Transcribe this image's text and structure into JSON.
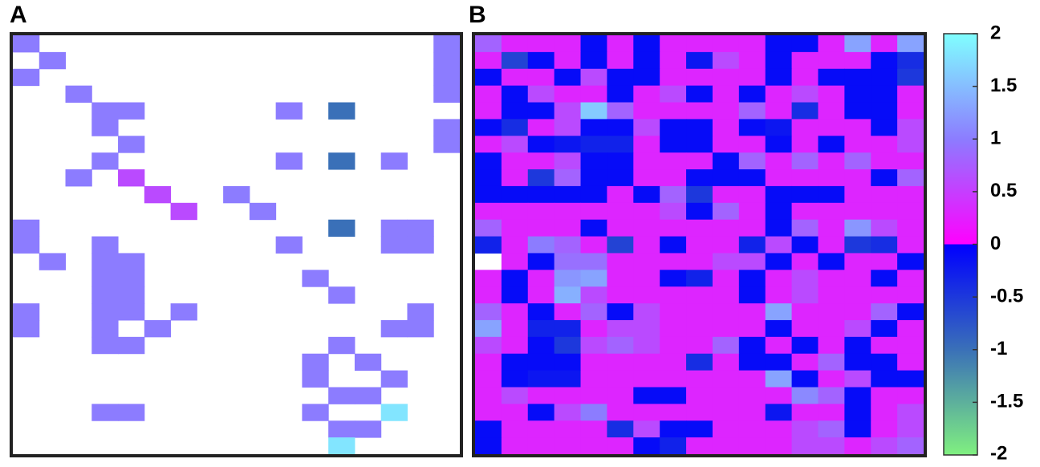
{
  "chart_data": {
    "type": "heatmap",
    "zlim": [
      -2,
      2
    ],
    "zticks": [
      2,
      1.5,
      1,
      0.5,
      0,
      -0.5,
      -1,
      -1.5,
      -2
    ],
    "colormap": {
      "negative": [
        "#80f080",
        "#3a70b8",
        "#0000ff"
      ],
      "positive": [
        "#ff00ff",
        "#8c7cff",
        "#80ffff"
      ]
    },
    "panels": [
      {
        "label": "A",
        "values": [
          [
            1,
            null,
            null,
            null,
            null,
            null,
            null,
            null,
            null,
            null,
            null,
            null,
            null,
            null,
            null,
            null,
            1
          ],
          [
            null,
            1,
            null,
            null,
            null,
            null,
            null,
            null,
            null,
            null,
            null,
            null,
            null,
            null,
            null,
            null,
            1
          ],
          [
            1,
            null,
            null,
            null,
            null,
            null,
            null,
            null,
            null,
            null,
            null,
            null,
            null,
            null,
            null,
            null,
            1
          ],
          [
            null,
            null,
            1,
            null,
            null,
            null,
            null,
            null,
            null,
            null,
            null,
            null,
            null,
            null,
            null,
            null,
            1
          ],
          [
            null,
            null,
            null,
            1,
            1,
            null,
            null,
            null,
            null,
            null,
            1,
            null,
            -1,
            null,
            null,
            null,
            null
          ],
          [
            null,
            null,
            null,
            1,
            null,
            null,
            null,
            null,
            null,
            null,
            null,
            null,
            null,
            null,
            null,
            null,
            1
          ],
          [
            null,
            null,
            null,
            null,
            1,
            null,
            null,
            null,
            null,
            null,
            null,
            null,
            null,
            null,
            null,
            null,
            1
          ],
          [
            null,
            null,
            null,
            1,
            null,
            null,
            null,
            null,
            null,
            null,
            1,
            null,
            -1,
            null,
            1,
            null,
            null
          ],
          [
            null,
            null,
            1,
            null,
            0.6,
            null,
            null,
            null,
            null,
            null,
            null,
            null,
            null,
            null,
            null,
            null,
            null
          ],
          [
            null,
            null,
            null,
            null,
            null,
            0.6,
            null,
            null,
            1,
            null,
            null,
            null,
            null,
            null,
            null,
            null,
            null
          ],
          [
            null,
            null,
            null,
            null,
            null,
            null,
            0.6,
            null,
            null,
            1,
            null,
            null,
            null,
            null,
            null,
            null,
            null
          ],
          [
            1,
            null,
            null,
            null,
            null,
            null,
            null,
            null,
            null,
            null,
            null,
            null,
            -1,
            null,
            1,
            1,
            null
          ],
          [
            1,
            null,
            null,
            1,
            null,
            null,
            null,
            null,
            null,
            null,
            1,
            null,
            null,
            null,
            1,
            1,
            null
          ],
          [
            null,
            1,
            null,
            1,
            1,
            null,
            null,
            null,
            null,
            null,
            null,
            null,
            null,
            null,
            null,
            null,
            null
          ],
          [
            null,
            null,
            null,
            1,
            1,
            null,
            null,
            null,
            null,
            null,
            null,
            1,
            null,
            null,
            null,
            null,
            null
          ],
          [
            null,
            null,
            null,
            1,
            1,
            null,
            null,
            null,
            null,
            null,
            null,
            null,
            1,
            null,
            null,
            null,
            null
          ],
          [
            1,
            null,
            null,
            1,
            1,
            null,
            1,
            null,
            null,
            null,
            null,
            null,
            null,
            null,
            null,
            1,
            null
          ],
          [
            1,
            null,
            null,
            1,
            null,
            1,
            null,
            null,
            null,
            null,
            null,
            null,
            null,
            null,
            1,
            1,
            null
          ],
          [
            null,
            null,
            null,
            1,
            1,
            null,
            null,
            null,
            null,
            null,
            null,
            null,
            1,
            null,
            null,
            null,
            null
          ],
          [
            null,
            null,
            null,
            null,
            null,
            null,
            null,
            null,
            null,
            null,
            null,
            1,
            null,
            1,
            null,
            null,
            null
          ],
          [
            null,
            null,
            null,
            null,
            null,
            null,
            null,
            null,
            null,
            null,
            null,
            1,
            null,
            null,
            1,
            null,
            null
          ],
          [
            null,
            null,
            null,
            null,
            null,
            null,
            null,
            null,
            null,
            null,
            null,
            null,
            1,
            1,
            null,
            null,
            null
          ],
          [
            null,
            null,
            null,
            1,
            1,
            null,
            null,
            null,
            null,
            null,
            null,
            1,
            null,
            null,
            1.8,
            null,
            null
          ],
          [
            null,
            null,
            null,
            null,
            null,
            null,
            null,
            null,
            null,
            null,
            null,
            null,
            1,
            1,
            null,
            null,
            null
          ],
          [
            null,
            null,
            null,
            null,
            null,
            null,
            null,
            null,
            null,
            null,
            null,
            null,
            1.8,
            null,
            null,
            null,
            null
          ]
        ]
      },
      {
        "label": "B",
        "values": [
          [
            0.8,
            0.3,
            0.3,
            0.3,
            -0.1,
            0.3,
            -0.1,
            0.3,
            0.3,
            0.3,
            0.3,
            -0.1,
            -0.1,
            0.3,
            1.3,
            0.3,
            1.3
          ],
          [
            0.3,
            -0.6,
            -0.1,
            0.3,
            -0.1,
            0.3,
            -0.1,
            0.3,
            -0.2,
            0.6,
            0.3,
            -0.1,
            0.3,
            0.3,
            0.3,
            -0.1,
            -0.4
          ],
          [
            -0.1,
            0.3,
            0.3,
            -0.1,
            0.6,
            -0.1,
            -0.1,
            0.3,
            0.3,
            0.3,
            0.3,
            -0.1,
            0.3,
            -0.1,
            -0.1,
            -0.1,
            -0.5
          ],
          [
            0.3,
            -0.1,
            0.6,
            0.3,
            0.3,
            -0.1,
            0.3,
            0.6,
            -0.1,
            0.3,
            -0.1,
            0.3,
            0.6,
            0.3,
            -0.1,
            -0.1,
            0.3
          ],
          [
            0.3,
            -0.1,
            -0.1,
            0.6,
            1.6,
            0.8,
            0.3,
            0.3,
            0.3,
            0.3,
            0.8,
            0.3,
            -0.4,
            0.3,
            -0.1,
            -0.1,
            0.3
          ],
          [
            -0.1,
            -0.4,
            0.3,
            0.6,
            -0.1,
            -0.1,
            0.6,
            -0.1,
            -0.1,
            0.3,
            -0.1,
            -0.2,
            0.3,
            0.3,
            0.3,
            -0.1,
            0.6
          ],
          [
            0.3,
            0.6,
            -0.1,
            -0.2,
            -0.3,
            -0.3,
            0.3,
            -0.1,
            -0.1,
            0.3,
            0.3,
            -0.1,
            0.3,
            -0.1,
            0.3,
            0.3,
            0.6
          ],
          [
            -0.1,
            0.3,
            0.3,
            0.6,
            -0.1,
            -0.1,
            0.3,
            0.3,
            0.3,
            -0.1,
            0.8,
            0.3,
            0.8,
            0.3,
            0.8,
            0.3,
            0.3
          ],
          [
            -0.1,
            0.3,
            -0.5,
            0.8,
            -0.1,
            -0.1,
            0.3,
            0.3,
            -0.1,
            -0.1,
            -0.1,
            0.3,
            0.3,
            0.3,
            0.3,
            -0.1,
            0.8
          ],
          [
            -0.1,
            -0.1,
            -0.1,
            -0.1,
            -0.1,
            0.3,
            -0.1,
            0.8,
            -0.5,
            0.3,
            0.3,
            -0.1,
            -0.1,
            -0.1,
            0.3,
            0.3,
            0.3
          ],
          [
            0.3,
            0.3,
            0.3,
            0.3,
            0.3,
            0.3,
            0.3,
            0.6,
            -0.1,
            0.8,
            0.3,
            -0.1,
            0.3,
            0.3,
            0.3,
            0.3,
            0.3
          ],
          [
            0.8,
            0.3,
            0.3,
            0.3,
            -0.1,
            0.3,
            0.3,
            0.3,
            0.3,
            0.3,
            0.3,
            -0.1,
            0.8,
            0.3,
            1.2,
            0.6,
            0.3
          ],
          [
            -0.3,
            0.3,
            1.0,
            0.8,
            0.3,
            -0.6,
            0.3,
            -0.1,
            0.3,
            0.3,
            -0.3,
            0.6,
            -0.1,
            0.3,
            -0.5,
            -0.4,
            0.3
          ],
          [
            null,
            0.3,
            -0.1,
            0.9,
            0.9,
            0.3,
            0.3,
            0.3,
            0.3,
            0.6,
            0.6,
            -0.1,
            0.3,
            -0.1,
            0.3,
            0.3,
            -0.1
          ],
          [
            0.3,
            -0.1,
            0.3,
            1.2,
            1.3,
            0.3,
            0.3,
            -0.1,
            -0.3,
            0.3,
            -0.1,
            0.3,
            0.6,
            0.3,
            0.3,
            -0.1,
            0.3
          ],
          [
            0.3,
            -0.1,
            0.3,
            1.4,
            0.6,
            0.3,
            0.3,
            0.3,
            0.3,
            0.3,
            -0.1,
            0.3,
            0.6,
            0.3,
            0.3,
            0.3,
            0.3
          ],
          [
            0.8,
            0.3,
            -0.1,
            0.3,
            0.8,
            -0.1,
            0.6,
            0.3,
            0.3,
            0.3,
            0.3,
            1.3,
            0.3,
            0.3,
            0.3,
            0.8,
            -0.1
          ],
          [
            1.3,
            0.3,
            -0.3,
            -0.3,
            0.3,
            0.6,
            0.6,
            0.3,
            0.3,
            0.3,
            0.3,
            -0.1,
            0.3,
            0.3,
            0.6,
            -0.1,
            0.3
          ],
          [
            0.6,
            0.3,
            -0.1,
            -0.5,
            0.6,
            0.8,
            0.6,
            0.3,
            0.3,
            0.8,
            -0.1,
            0.3,
            -0.1,
            0.3,
            -0.1,
            0.3,
            0.3
          ],
          [
            0.3,
            -0.1,
            -0.1,
            -0.1,
            0.3,
            0.3,
            0.3,
            0.3,
            -0.4,
            0.3,
            -0.1,
            -0.1,
            0.3,
            0.8,
            -0.1,
            -0.1,
            0.3
          ],
          [
            0.3,
            -0.1,
            -0.2,
            -0.2,
            0.3,
            0.3,
            0.3,
            0.3,
            0.3,
            0.3,
            0.3,
            1.3,
            -0.1,
            0.3,
            0.6,
            -0.1,
            -0.1
          ],
          [
            0.3,
            0.6,
            0.3,
            0.3,
            0.3,
            0.3,
            -0.1,
            -0.1,
            0.3,
            0.3,
            0.3,
            0.3,
            1.1,
            0.8,
            -0.1,
            0.3,
            0.3
          ],
          [
            0.3,
            0.3,
            -0.1,
            0.6,
            1.0,
            0.3,
            0.3,
            0.3,
            0.3,
            0.3,
            0.3,
            -0.2,
            0.3,
            0.3,
            -0.1,
            0.3,
            0.6
          ],
          [
            -0.1,
            0.3,
            0.3,
            0.3,
            0.3,
            -0.4,
            0.6,
            -0.1,
            -0.1,
            0.3,
            0.3,
            0.3,
            0.6,
            0.8,
            -0.1,
            0.3,
            0.6
          ],
          [
            -0.1,
            0.3,
            0.3,
            0.3,
            0.3,
            0.3,
            -0.1,
            -0.3,
            0.3,
            0.3,
            0.3,
            0.3,
            0.6,
            0.6,
            0.3,
            0.6,
            0.8
          ]
        ]
      }
    ]
  }
}
